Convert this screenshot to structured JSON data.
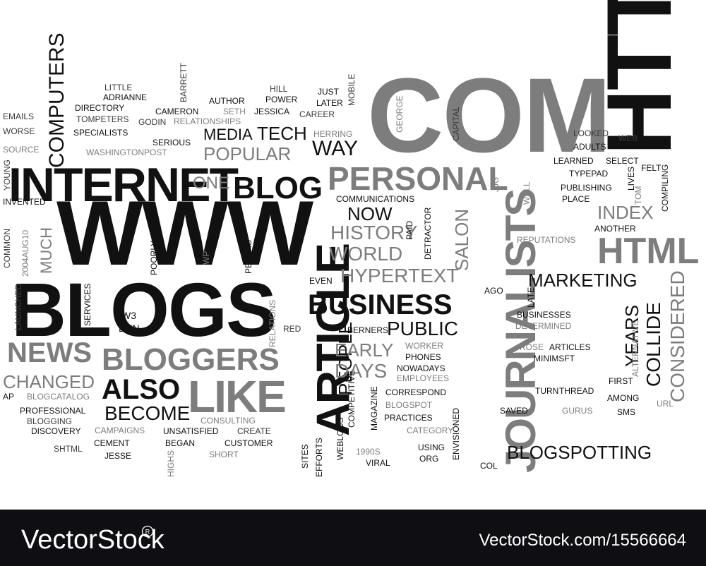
{
  "colors": {
    "black": "#111111",
    "dark": "#3a3a3a",
    "gray": "#7d7d7d",
    "light": "#a9a9a9",
    "footer": "#0f0f13"
  },
  "footer": {
    "brand": "VectorStock",
    "image_id": "VectorStock.com/15566664"
  },
  "words": [
    "COM",
    "WWW",
    "BLOGS",
    "INTERNET",
    "HTTP",
    "ARTICLE",
    "JOURNALISTS",
    "BLOG",
    "PERSONAL",
    "LIKE",
    "BLOGGERS",
    "NEWS",
    "ALSO",
    "BUSINESS",
    "HTML",
    "BLOGSPOTTING",
    "MEDIA",
    "TECH",
    "POPULAR",
    "ONE",
    "WAY",
    "NOW",
    "HISTORY",
    "WORLD",
    "HYPERTEXT",
    "SALON",
    "PUBLIC",
    "PEOPLE",
    "EARLY",
    "DAYS",
    "MARKETING",
    "YEARS",
    "COLLIDE",
    "CONSIDERED",
    "INDEX",
    "CHANGED",
    "BECOME",
    "COMPUTERS",
    "MUCH",
    "CAPITAL",
    "GEORGE",
    "EMAILS",
    "WORSE",
    "SOURCE",
    "YOUNG",
    "INVENTED",
    "COMMON",
    "2004AUG10",
    "LAUNCHED",
    "SERVICES",
    "AP",
    "BLOGCATALOG",
    "PROFESSIONAL",
    "BLOGGING",
    "DISCOVERY",
    "SHTML",
    "CEMENT",
    "JESSE",
    "CAMPAIGNS",
    "UNSATISFIED",
    "BEGAN",
    "CREATE",
    "CUSTOMER",
    "SHORT",
    "CONSULTING",
    "HIGHS",
    "POORLY",
    "W3",
    "DYN",
    "WP",
    "PETERS",
    "RED",
    "RELATIONS",
    "LITTLE",
    "ADRIANNE",
    "DIRECTORY",
    "TOMPETERS",
    "SPECIALISTS",
    "BARRETT",
    "CAMERON",
    "GODIN",
    "SERIOUS",
    "WASHINGTONPOST",
    "AUTHOR",
    "SETH",
    "RELATIONSHIPS",
    "HILL",
    "POWER",
    "JESSICA",
    "JUST",
    "LATER",
    "CAREER",
    "MOBILE",
    "HERRING",
    "COMMUNICATIONS",
    "PAID",
    "DETRACTOR",
    "EVEN",
    "BERNERS",
    "WORKER",
    "PHONES",
    "NOWADAYS",
    "EMPLOYEES",
    "CORRESPOND",
    "BLOGSPOT",
    "PRACTICES",
    "CATEGORY",
    "USING",
    "ORG",
    "ENVISIONED",
    "MAGAZINE",
    "COMPETITIVE",
    "WEBLOGS",
    "EFFORTS",
    "SITES",
    "1990S",
    "VIRAL",
    "COL",
    "AGO",
    "LATE",
    "BUSINESSES",
    "DETERMINED",
    "ROSE",
    "ARTICLES",
    "MINIMSFT",
    "TURN",
    "SAVED",
    "GURUS",
    "THREAD",
    "AMONG",
    "SMS",
    "FIRST",
    "URL",
    "ALTERNATIVE",
    "ANOTHER",
    "REPUTATIONS",
    "PLACE",
    "PUBLISHING",
    "TYPEPAD",
    "LEARNED",
    "SELECT",
    "LOOKED",
    "ADULTS",
    "WEB",
    "FELT",
    "JJG",
    "WELL",
    "LIVES",
    "TOM",
    "COMPILING"
  ]
}
